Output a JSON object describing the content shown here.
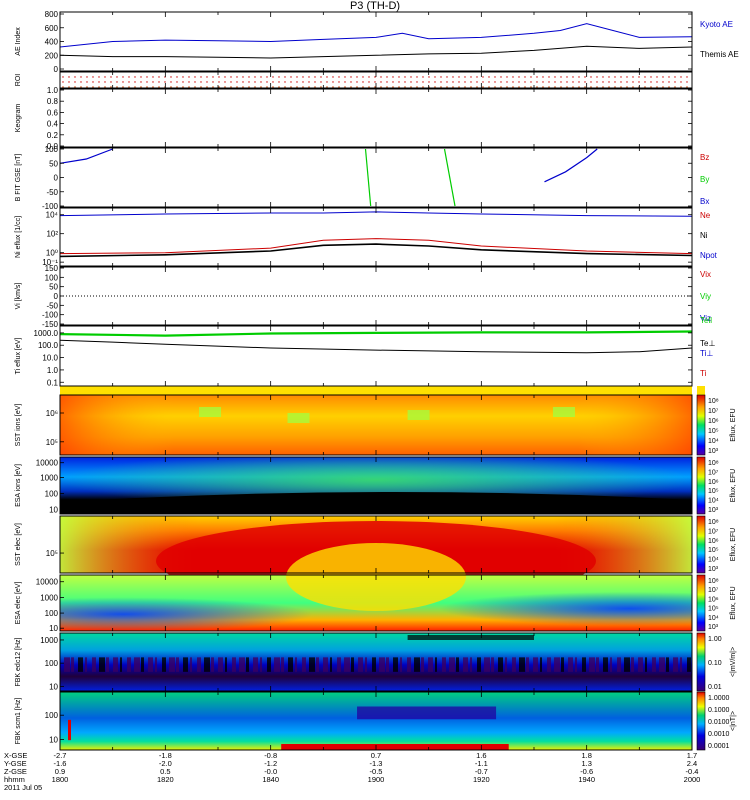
{
  "title": "P3 (TH-D)",
  "colors": {
    "blue": "#0000cc",
    "red": "#cc0000",
    "green": "#00cc00",
    "black": "#000000",
    "panel_border": "#000000",
    "dotted_zero": "#000000"
  },
  "time_axis": {
    "start_label": "1800",
    "end_label": "2000",
    "ticks": [
      {
        "hhmm": "1800",
        "x_gse": "-2.7",
        "y_gse": "-1.6",
        "z_gse": "0.9"
      },
      {
        "hhmm": "1820",
        "x_gse": "-1.8",
        "y_gse": "-2.0",
        "z_gse": "0.5"
      },
      {
        "hhmm": "1840",
        "x_gse": "-0.8",
        "y_gse": "-1.2",
        "z_gse": "-0.0"
      },
      {
        "hhmm": "1900",
        "x_gse": "0.7",
        "y_gse": "-1.3",
        "z_gse": "-0.5"
      },
      {
        "hhmm": "1920",
        "x_gse": "1.6",
        "y_gse": "-1.1",
        "z_gse": "-0.7"
      },
      {
        "hhmm": "1940",
        "x_gse": "1.8",
        "y_gse": "1.3",
        "z_gse": "-0.6"
      },
      {
        "hhmm": "2000",
        "x_gse": "1.7",
        "y_gse": "2.4",
        "z_gse": "-0.4"
      }
    ],
    "row_labels": [
      "X-GSE",
      "Y-GSE",
      "Z-GSE",
      "hhmm",
      "2011 Jul 05"
    ]
  },
  "chart_data": [
    {
      "type": "line",
      "ylabel": "AE Index",
      "ylim": [
        0,
        800
      ],
      "yticks": [
        "0",
        "200",
        "400",
        "600",
        "800"
      ],
      "series": [
        {
          "name": "Kyoto AE",
          "color": "blue",
          "x": [
            "1800",
            "1810",
            "1820",
            "1830",
            "1840",
            "1850",
            "1900",
            "1905",
            "1910",
            "1920",
            "1930",
            "1935",
            "1940",
            "1945",
            "1950",
            "2000"
          ],
          "values": [
            320,
            400,
            420,
            410,
            400,
            430,
            460,
            520,
            440,
            460,
            520,
            560,
            660,
            560,
            460,
            470
          ]
        },
        {
          "name": "Themis AE",
          "color": "black",
          "x": [
            "1800",
            "1810",
            "1820",
            "1830",
            "1840",
            "1850",
            "1900",
            "1910",
            "1920",
            "1930",
            "1940",
            "1950",
            "2000"
          ],
          "values": [
            200,
            180,
            180,
            170,
            160,
            180,
            200,
            220,
            230,
            270,
            330,
            300,
            320
          ]
        }
      ]
    },
    {
      "type": "line",
      "ylabel": "ROI",
      "note": "dotted region-of-interest flags",
      "series": []
    },
    {
      "type": "line",
      "ylabel": "Keogram",
      "ylim": [
        0,
        1.0
      ],
      "yticks": [
        "0.0",
        "0.2",
        "0.4",
        "0.6",
        "0.8",
        "1.0"
      ],
      "series": []
    },
    {
      "type": "line",
      "ylabel": "B FIT GSE [nT]",
      "ylim": [
        -100,
        100
      ],
      "yticks": [
        "-100",
        "-50",
        "0",
        "50",
        "100"
      ],
      "series": [
        {
          "name": "Bx",
          "color": "blue",
          "segments": [
            {
              "x": [
                "1800",
                "1805",
                "1810"
              ],
              "values": [
                50,
                65,
                100
              ]
            },
            {
              "x": [
                "1932",
                "1936",
                "1940",
                "1942"
              ],
              "values": [
                -15,
                20,
                70,
                100
              ]
            }
          ]
        },
        {
          "name": "By",
          "color": "green",
          "segments": [
            {
              "x": [
                "1858",
                "1859"
              ],
              "values": [
                100,
                -100
              ]
            },
            {
              "x": [
                "1913",
                "1915"
              ],
              "values": [
                100,
                -100
              ]
            }
          ]
        },
        {
          "name": "Bz",
          "color": "red",
          "segments": []
        }
      ]
    },
    {
      "type": "line",
      "ylabel": "Ni eflux [1/cc]",
      "yscale": "log",
      "yticks": [
        "10⁻¹",
        "10⁰",
        "10²",
        "10⁴"
      ],
      "series": [
        {
          "name": "Ne",
          "color": "red",
          "x": [
            "1800",
            "1820",
            "1840",
            "1850",
            "1900",
            "1910",
            "1920",
            "1940",
            "2000"
          ],
          "values": [
            0.8,
            1.0,
            3.0,
            20,
            30,
            20,
            5,
            1.5,
            0.8
          ]
        },
        {
          "name": "Ni",
          "color": "black",
          "x": [
            "1800",
            "1820",
            "1840",
            "1850",
            "1900",
            "1910",
            "1920",
            "1940",
            "2000"
          ],
          "values": [
            0.4,
            0.6,
            1.5,
            6,
            8,
            5,
            2,
            0.8,
            0.5
          ]
        },
        {
          "name": "Npot",
          "color": "blue",
          "x": [
            "1800",
            "1820",
            "1840",
            "1850",
            "1900",
            "1910",
            "1920",
            "1940",
            "2000"
          ],
          "values": [
            8000,
            12000,
            15000,
            15000,
            20000,
            15000,
            12000,
            8000,
            7000
          ]
        }
      ]
    },
    {
      "type": "line",
      "ylabel": "Vi [km/s]",
      "ylim": [
        -150,
        150
      ],
      "yticks": [
        "-150",
        "-100",
        "-50",
        "0",
        "50",
        "100",
        "150"
      ],
      "series": [
        {
          "name": "Vix",
          "color": "red",
          "values": []
        },
        {
          "name": "Viy",
          "color": "green",
          "values": []
        },
        {
          "name": "Viz",
          "color": "blue",
          "values": []
        }
      ]
    },
    {
      "type": "line",
      "ylabel": "Ti eflux [eV]",
      "yscale": "log",
      "yticks": [
        "0.1",
        "1.0",
        "10.0",
        "100.0",
        "1000.0"
      ],
      "series": [
        {
          "name": "Tell",
          "color": "green",
          "x": [
            "1800",
            "1820",
            "1840",
            "1900",
            "1920",
            "1940",
            "2000"
          ],
          "values": [
            800,
            600,
            900,
            1000,
            1100,
            1100,
            1300
          ]
        },
        {
          "name": "Te⊥",
          "color": "black",
          "x": [
            "1800",
            "1810",
            "1820",
            "1840",
            "1900",
            "1910",
            "1920",
            "1940",
            "1950",
            "2000"
          ],
          "values": [
            250,
            180,
            120,
            60,
            40,
            35,
            30,
            25,
            30,
            60
          ]
        },
        {
          "name": "Ti⊥",
          "color": "blue",
          "values": []
        },
        {
          "name": "Ti",
          "color": "red",
          "values": []
        }
      ]
    },
    {
      "type": "heatmap",
      "ylabel": "SST ions [eV]",
      "colorbar_label": "Eflux, EFU",
      "colorbar_ticks": [
        "10⁸",
        "10⁷",
        "10⁶",
        "10⁵",
        "10⁴",
        "10³"
      ],
      "ytick_labels": [
        "10⁵",
        "10⁶"
      ]
    },
    {
      "type": "heatmap",
      "ylabel": "ESA ions [eV]",
      "colorbar_label": "Eflux, EFU",
      "colorbar_ticks": [
        "10⁸",
        "10⁷",
        "10⁶",
        "10⁵",
        "10⁴",
        "10³"
      ],
      "ytick_labels": [
        "10",
        "100",
        "1000",
        "10000"
      ]
    },
    {
      "type": "heatmap",
      "ylabel": "SST elec [eV]",
      "colorbar_label": "Eflux, EFU",
      "colorbar_ticks": [
        "10⁸",
        "10⁷",
        "10⁶",
        "10⁵",
        "10⁴",
        "10³"
      ],
      "ytick_labels": [
        "10⁵"
      ]
    },
    {
      "type": "heatmap",
      "ylabel": "ESA elec [eV]",
      "colorbar_label": "Eflux, EFU",
      "colorbar_ticks": [
        "10⁸",
        "10⁷",
        "10⁶",
        "10⁵",
        "10⁴",
        "10³"
      ],
      "ytick_labels": [
        "10",
        "100",
        "1000",
        "10000"
      ]
    },
    {
      "type": "heatmap",
      "ylabel": "FBK edc12 [Hz]",
      "colorbar_label": "<|mV/m|>",
      "colorbar_ticks": [
        "1.00",
        "0.10",
        "0.01"
      ],
      "ytick_labels": [
        "10",
        "100",
        "1000"
      ]
    },
    {
      "type": "heatmap",
      "ylabel": "FBK scm1 [Hz]",
      "colorbar_label": "<|nT|>",
      "colorbar_ticks": [
        "1.0000",
        "0.1000",
        "0.0100",
        "0.0010",
        "0.0001"
      ],
      "ytick_labels": [
        "10",
        "100"
      ]
    }
  ]
}
